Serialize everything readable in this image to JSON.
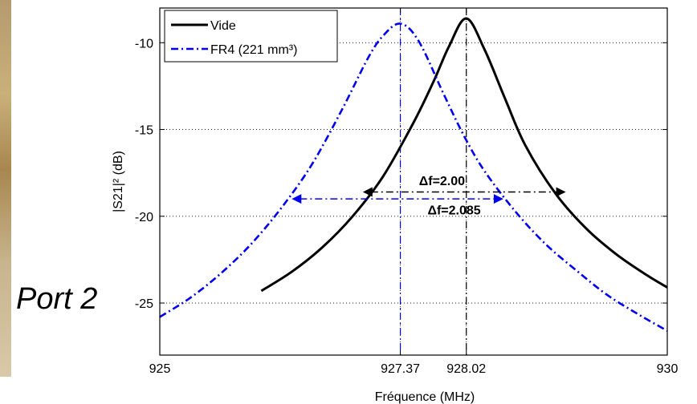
{
  "side_text": "Port 2",
  "chart_data": {
    "type": "line",
    "xlabel": "Fréquence (MHz)",
    "ylabel": "|S21|² (dB)",
    "xlim": [
      925,
      930
    ],
    "ylim": [
      -28,
      -8
    ],
    "xticks": [
      925,
      927.37,
      928.02,
      930
    ],
    "xtick_labels": [
      "925",
      "927.37",
      "928.02",
      "930"
    ],
    "yticks": [
      -25,
      -20,
      -15,
      -10
    ],
    "ytick_labels": [
      "-25",
      "-20",
      "-15",
      "-10"
    ],
    "grid": true,
    "legend_position": "top-left",
    "series": [
      {
        "name": "Vide",
        "color": "#000000",
        "style": "solid",
        "x": [
          926.0,
          926.3,
          926.6,
          926.9,
          927.2,
          927.5,
          927.7,
          927.85,
          928.02,
          928.2,
          928.4,
          928.6,
          928.9,
          929.2,
          929.5,
          929.8,
          930.0
        ],
        "y": [
          -24.3,
          -23.2,
          -21.8,
          -20.0,
          -17.7,
          -14.6,
          -12.2,
          -10.2,
          -8.6,
          -10.4,
          -13.2,
          -15.9,
          -18.7,
          -20.7,
          -22.2,
          -23.4,
          -24.1
        ]
      },
      {
        "name": "FR4 (221 mm³)",
        "color": "#0000ee",
        "style": "dashdot",
        "x": [
          925.0,
          925.3,
          925.6,
          925.9,
          926.2,
          926.5,
          926.8,
          927.05,
          927.2,
          927.37,
          927.55,
          927.8,
          928.0,
          928.2,
          928.5,
          928.8,
          929.1,
          929.4,
          929.7,
          930.0
        ],
        "y": [
          -25.8,
          -24.7,
          -23.3,
          -21.6,
          -19.5,
          -17.0,
          -13.8,
          -10.9,
          -9.6,
          -8.9,
          -9.9,
          -13.0,
          -15.4,
          -17.4,
          -19.7,
          -21.6,
          -23.1,
          -24.5,
          -25.6,
          -26.6
        ]
      }
    ],
    "vlines": [
      {
        "x": 927.37,
        "color": "#0000ee",
        "style": "dashdot"
      },
      {
        "x": 928.02,
        "color": "#000000",
        "style": "dashdot"
      }
    ],
    "annotations": [
      {
        "label": "Δf=2.00",
        "x1": 927.0,
        "x2": 929.0,
        "y": -18.6,
        "color": "#000000",
        "text_x": 927.78,
        "text_y": -18.2
      },
      {
        "label": "Δf=2.085",
        "x1": 926.3,
        "x2": 928.385,
        "y": -19.0,
        "color": "#0000ee",
        "text_x": 927.9,
        "text_y": -19.9
      }
    ]
  }
}
